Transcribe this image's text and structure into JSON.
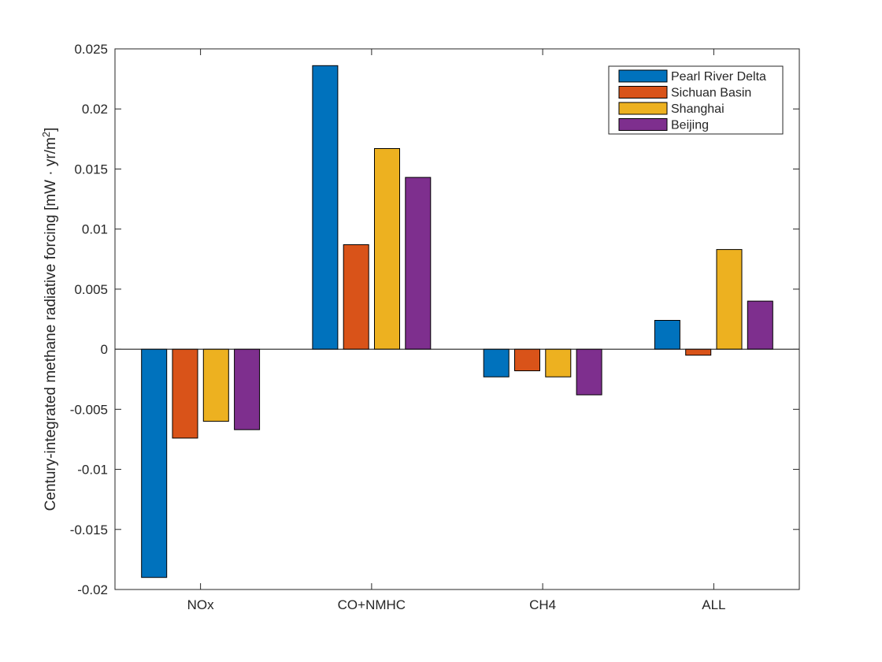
{
  "chart_data": {
    "type": "bar",
    "title": "",
    "xlabel": "",
    "ylabel": "Century-integrated methane radiative forcing [mW · yr/m",
    "ylabel_superscript": "2",
    "ylabel_suffix": "]",
    "categories": [
      "NOx",
      "CO+NMHC",
      "CH4",
      "ALL"
    ],
    "series": [
      {
        "name": "Pearl River Delta",
        "color": "#0072BD",
        "values": [
          -0.019,
          0.0236,
          -0.0023,
          0.0024
        ]
      },
      {
        "name": "Sichuan Basin",
        "color": "#D95319",
        "values": [
          -0.0074,
          0.0087,
          -0.0018,
          -0.0005
        ]
      },
      {
        "name": "Shanghai",
        "color": "#EDB120",
        "values": [
          -0.006,
          0.0167,
          -0.0023,
          0.0083
        ]
      },
      {
        "name": "Beijing",
        "color": "#7E2F8E",
        "values": [
          -0.0067,
          0.0143,
          -0.0038,
          0.004
        ]
      }
    ],
    "ylim": [
      -0.02,
      0.025
    ],
    "yticks": [
      -0.02,
      -0.015,
      -0.01,
      -0.005,
      0,
      0.005,
      0.01,
      0.015,
      0.02,
      0.025
    ],
    "ytick_labels": [
      "-0.02",
      "-0.015",
      "-0.01",
      "-0.005",
      "0",
      "0.005",
      "0.01",
      "0.015",
      "0.02",
      "0.025"
    ],
    "grid": false,
    "legend_position": "top-right"
  }
}
